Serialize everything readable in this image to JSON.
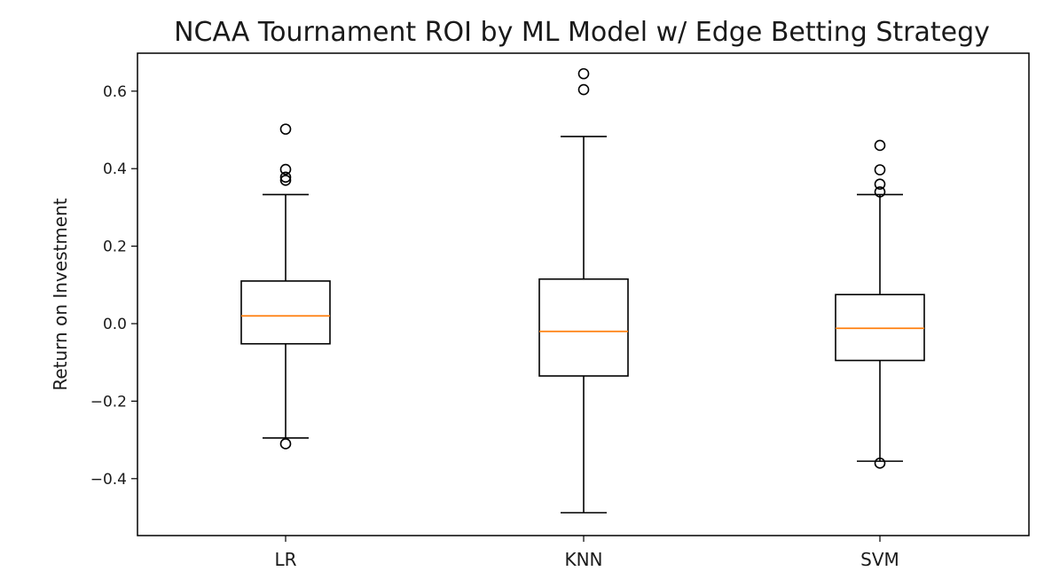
{
  "chart_data": {
    "type": "box",
    "title": "NCAA Tournament ROI by ML Model w/ Edge Betting Strategy",
    "xlabel": "",
    "ylabel": "Return on Investment",
    "ylim": [
      -0.55,
      0.7
    ],
    "yticks": [
      0.6,
      0.4,
      0.2,
      0.0,
      -0.2,
      -0.4
    ],
    "ytick_labels": [
      "0.6",
      "0.4",
      "0.2",
      "0.0",
      "−0.2",
      "−0.4"
    ],
    "grid": false,
    "colors": {
      "box": "#000000",
      "median": "#ff7f0e",
      "frame": "#000000"
    },
    "categories": [
      "LR",
      "KNN",
      "SVM"
    ],
    "boxes": [
      {
        "label": "LR",
        "whisker_low": -0.295,
        "q1": -0.052,
        "median": 0.02,
        "q3": 0.11,
        "whisker_high": 0.333,
        "outliers": [
          0.502,
          0.398,
          0.378,
          0.37,
          -0.31
        ]
      },
      {
        "label": "KNN",
        "whisker_low": -0.488,
        "q1": -0.135,
        "median": -0.02,
        "q3": 0.115,
        "whisker_high": 0.483,
        "outliers": [
          0.645,
          0.604
        ]
      },
      {
        "label": "SVM",
        "whisker_low": -0.355,
        "q1": -0.095,
        "median": -0.012,
        "q3": 0.075,
        "whisker_high": 0.333,
        "outliers": [
          0.46,
          0.397,
          0.36,
          0.34,
          -0.36
        ]
      }
    ]
  }
}
